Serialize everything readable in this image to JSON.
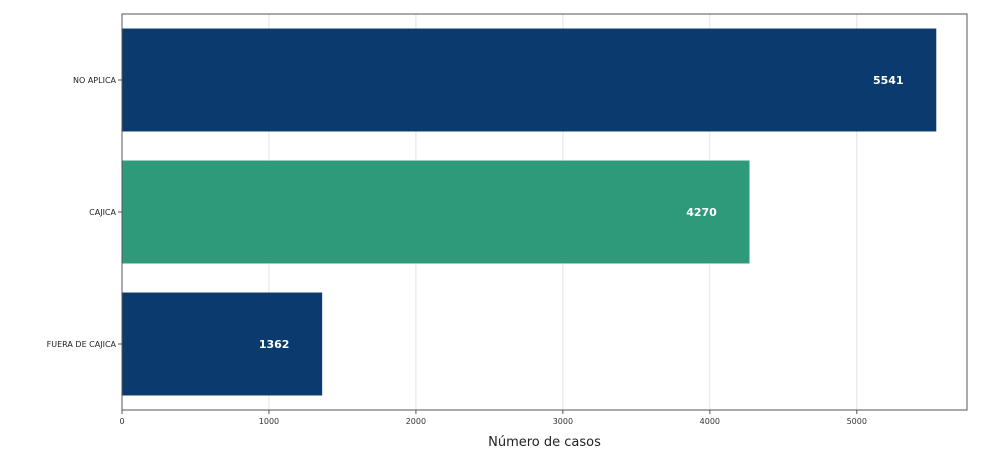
{
  "chart_data": {
    "type": "bar",
    "orientation": "horizontal",
    "title": "",
    "xlabel": "Número de casos",
    "ylabel": "",
    "categories": [
      "NO APLICA",
      "CAJICA",
      "FUERA DE CAJICA"
    ],
    "values": [
      5541,
      4270,
      1362
    ],
    "value_labels": [
      "5541",
      "4270",
      "1362"
    ],
    "bar_colors": [
      "#0b3a6e",
      "#2e9a7a",
      "#0b3a6e"
    ],
    "xlim": [
      0,
      5750
    ],
    "xticks": [
      0,
      1000,
      2000,
      3000,
      4000,
      5000
    ],
    "xtick_labels": [
      "0",
      "1000",
      "2000",
      "3000",
      "4000",
      "5000"
    ],
    "grid": "vertical",
    "legend": "none"
  }
}
